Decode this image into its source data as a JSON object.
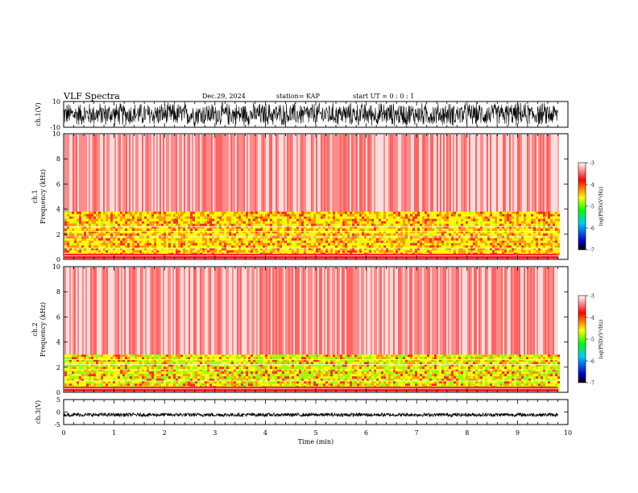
{
  "header": {
    "title": "VLF Spectra",
    "date": "Dec.29, 2024",
    "station": "station= KAP",
    "start_ut": "start  UT =   0 : 0  : 1"
  },
  "chart_data": [
    {
      "type": "line",
      "panel": "ch1-waveform",
      "ylabel": "ch.1(V)",
      "ylim": [
        -10,
        10
      ],
      "ytick_labels": [
        "10",
        "-10"
      ],
      "xlim": [
        0,
        10
      ],
      "note_values": "dense oscillating waveform spanning roughly -10 to 10 V from 0 to ~9.8 min"
    },
    {
      "type": "heatmap",
      "panel": "ch1-spectrogram",
      "ylabel": "ch.1\nFrequency  (kHz)",
      "ylim": [
        0,
        10
      ],
      "ytick_labels": [
        "0",
        "2",
        "4",
        "6",
        "8",
        "10"
      ],
      "xlim": [
        0,
        9.8
      ],
      "bands": [
        {
          "fmin_khz": 0.5,
          "fmax_khz": 3.8,
          "level": -4.3
        },
        {
          "fmin_khz": 3.8,
          "fmax_khz": 10,
          "level": -3.2
        }
      ],
      "colorbar": {
        "label": "log(PSD)(V²/Hz)",
        "range": [
          -7,
          -3
        ],
        "tick_labels": [
          "-3",
          "-4",
          "-5",
          "-6",
          "-7"
        ],
        "colors": [
          "#000000",
          "#0000c8",
          "#00c8ff",
          "#00ff00",
          "#ffff00",
          "#ff8000",
          "#ff0000",
          "#ffffff"
        ]
      }
    },
    {
      "type": "heatmap",
      "panel": "ch2-spectrogram",
      "ylabel": "ch.2\nFrequency  (kHz)",
      "ylim": [
        0,
        10
      ],
      "ytick_labels": [
        "0",
        "2",
        "4",
        "6",
        "8",
        "10"
      ],
      "xlim": [
        0,
        9.8
      ],
      "bands": [
        {
          "fmin_khz": 0.3,
          "fmax_khz": 3.0,
          "level": -4.8
        },
        {
          "fmin_khz": 3.0,
          "fmax_khz": 10,
          "level": -3.3
        }
      ],
      "colorbar": {
        "label": "log(PSD)(V²/Hz)",
        "range": [
          -7,
          -3
        ],
        "tick_labels": [
          "-3",
          "-4",
          "-5",
          "-6",
          "-7"
        ]
      }
    },
    {
      "type": "line",
      "panel": "ch3-waveform",
      "ylabel": "ch.3(V)",
      "ylim": [
        -5,
        5
      ],
      "ytick_labels": [
        "5",
        "0",
        "-5"
      ],
      "xlim": [
        0,
        10
      ],
      "xlabel": "Time  (min)",
      "xtick_labels": [
        "0",
        "1",
        "2",
        "3",
        "4",
        "5",
        "6",
        "7",
        "8",
        "9",
        "10"
      ],
      "note_values": "narrow band of noise around approximately -1 V"
    }
  ]
}
